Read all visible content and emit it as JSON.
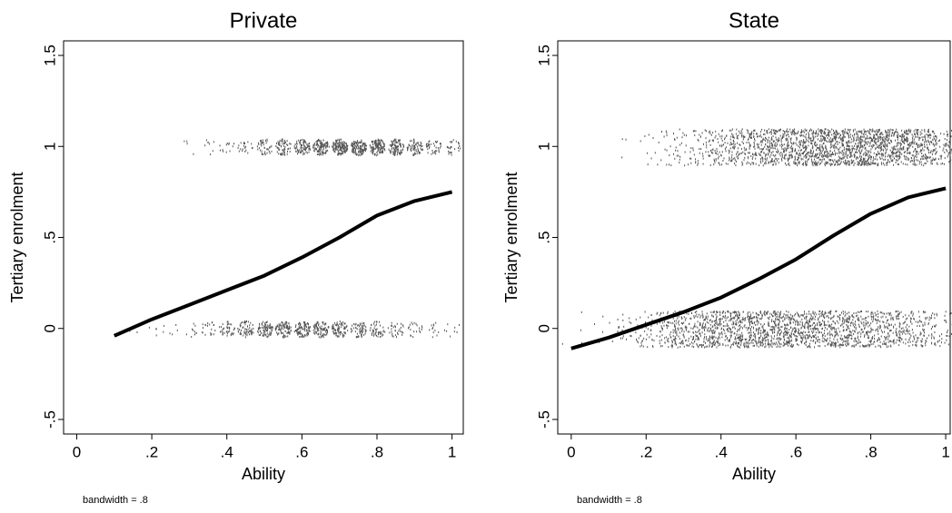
{
  "chart_data": [
    {
      "type": "scatter",
      "title": "Private",
      "xlabel": "Ability",
      "ylabel": "Tertiary enrolment",
      "note": "bandwidth = .8",
      "xlim": [
        -0.035,
        1.03
      ],
      "ylim": [
        -0.58,
        1.58
      ],
      "xticks": [
        0,
        {
          "value": 0.2,
          "label": ".2"
        },
        {
          "value": 0.4,
          "label": ".4"
        },
        {
          "value": 0.6,
          "label": ".6"
        },
        {
          "value": 0.8,
          "label": ".8"
        },
        1
      ],
      "yticks": [
        {
          "value": -0.5,
          "label": "-.5"
        },
        0,
        {
          "value": 0.5,
          "label": ".5"
        },
        1,
        1.5
      ],
      "series": [
        {
          "mark": "points",
          "color": "#555555",
          "x": [
            0.3,
            0.35,
            0.4,
            0.45,
            0.5,
            0.55,
            0.6,
            0.65,
            0.7,
            0.75,
            0.8,
            0.85,
            0.9,
            0.95,
            1.0
          ],
          "values": [
            1,
            1,
            1,
            1,
            1,
            1,
            1,
            1,
            1,
            1,
            1,
            1,
            1,
            1,
            1
          ],
          "counts": [
            4,
            8,
            12,
            20,
            40,
            60,
            80,
            110,
            130,
            130,
            120,
            100,
            70,
            40,
            25
          ]
        },
        {
          "mark": "points",
          "color": "#555555",
          "x": [
            0.1,
            0.15,
            0.2,
            0.25,
            0.3,
            0.35,
            0.4,
            0.45,
            0.5,
            0.55,
            0.6,
            0.65,
            0.7,
            0.75,
            0.8,
            0.85,
            0.9,
            0.95,
            1.0
          ],
          "values": [
            0,
            0,
            0,
            0,
            0,
            0,
            0,
            0,
            0,
            0,
            0,
            0,
            0,
            0,
            0,
            0,
            0,
            0,
            0
          ],
          "counts": [
            1,
            2,
            4,
            6,
            10,
            20,
            40,
            60,
            80,
            90,
            90,
            85,
            75,
            60,
            45,
            30,
            20,
            12,
            8
          ]
        },
        {
          "mark": "line",
          "color": "#000000",
          "x": [
            0.1,
            0.2,
            0.3,
            0.4,
            0.5,
            0.6,
            0.7,
            0.8,
            0.9,
            1.0
          ],
          "values": [
            -0.04,
            0.05,
            0.13,
            0.21,
            0.29,
            0.39,
            0.5,
            0.62,
            0.7,
            0.75
          ]
        }
      ]
    },
    {
      "type": "scatter",
      "title": "State",
      "xlabel": "Ability",
      "ylabel": "Tertiary enrolment",
      "note": "bandwidth = .8",
      "xlim": [
        -0.036,
        1.012
      ],
      "ylim": [
        -0.58,
        1.58
      ],
      "xticks": [
        0,
        {
          "value": 0.2,
          "label": ".2"
        },
        {
          "value": 0.4,
          "label": ".4"
        },
        {
          "value": 0.6,
          "label": ".6"
        },
        {
          "value": 0.8,
          "label": ".8"
        },
        1
      ],
      "yticks": [
        {
          "value": -0.5,
          "label": "-.5"
        },
        0,
        {
          "value": 0.5,
          "label": ".5"
        },
        1,
        1.5
      ],
      "series": [
        {
          "mark": "points",
          "color": "#555555",
          "x": [
            0.15,
            0.2,
            0.25,
            0.3,
            0.35,
            0.4,
            0.45,
            0.5,
            0.55,
            0.6,
            0.65,
            0.7,
            0.75,
            0.8,
            0.85,
            0.9,
            0.95,
            1.0
          ],
          "values": [
            1,
            1,
            1,
            1,
            1,
            1,
            1,
            1,
            1,
            1,
            1,
            1,
            1,
            1,
            1,
            1,
            1,
            1
          ],
          "counts": [
            3,
            8,
            18,
            30,
            45,
            70,
            100,
            130,
            150,
            170,
            185,
            195,
            200,
            200,
            185,
            165,
            140,
            60
          ]
        },
        {
          "mark": "points",
          "color": "#555555",
          "x": [
            0.0,
            0.05,
            0.1,
            0.15,
            0.2,
            0.25,
            0.3,
            0.35,
            0.4,
            0.45,
            0.5,
            0.55,
            0.6,
            0.65,
            0.7,
            0.75,
            0.8,
            0.85,
            0.9,
            0.95,
            1.0
          ],
          "values": [
            0,
            0,
            0,
            0,
            0,
            0,
            0,
            0,
            0,
            0,
            0,
            0,
            0,
            0,
            0,
            0,
            0,
            0,
            0,
            0,
            0
          ],
          "counts": [
            2,
            4,
            8,
            20,
            40,
            75,
            105,
            130,
            150,
            160,
            165,
            165,
            160,
            150,
            140,
            130,
            115,
            100,
            85,
            70,
            30
          ]
        },
        {
          "mark": "line",
          "color": "#000000",
          "x": [
            0.0,
            0.1,
            0.2,
            0.3,
            0.4,
            0.5,
            0.6,
            0.7,
            0.8,
            0.9,
            1.0
          ],
          "values": [
            -0.11,
            -0.05,
            0.02,
            0.09,
            0.17,
            0.27,
            0.38,
            0.51,
            0.63,
            0.72,
            0.77
          ]
        }
      ]
    }
  ]
}
